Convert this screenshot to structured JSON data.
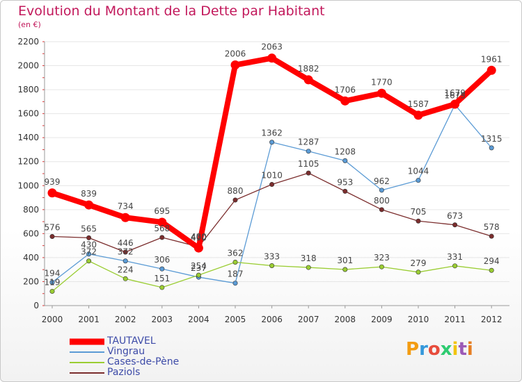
{
  "chart_data": {
    "type": "line",
    "title": "Evolution du Montant de la Dette par Habitant",
    "subtitle": "(en €)",
    "x": [
      "2000",
      "2001",
      "2002",
      "2003",
      "2004",
      "2005",
      "2006",
      "2007",
      "2008",
      "2009",
      "2010",
      "2011",
      "2012"
    ],
    "ylim": [
      0,
      2200
    ],
    "yticks": [
      0,
      200,
      400,
      600,
      800,
      1000,
      1200,
      1400,
      1600,
      1800,
      2000,
      2200
    ],
    "grid": "horizontal",
    "legend_position": "bottom-left",
    "series": [
      {
        "name": "TAUTAVEL",
        "color": "#ff0000",
        "values": [
          939,
          839,
          734,
          695,
          480,
          2006,
          2063,
          1882,
          1706,
          1770,
          1587,
          1679,
          1961
        ]
      },
      {
        "name": "Vingrau",
        "color": "#5b9bd5",
        "values": [
          194,
          430,
          372,
          306,
          237,
          187,
          1362,
          1287,
          1208,
          962,
          1044,
          1675,
          1315
        ]
      },
      {
        "name": "Cases-de-Pène",
        "color": "#9acd32",
        "values": [
          119,
          372,
          224,
          151,
          254,
          362,
          333,
          318,
          301,
          323,
          279,
          331,
          294
        ]
      },
      {
        "name": "Paziols",
        "color": "#7b2d2d",
        "values": [
          576,
          565,
          446,
          568,
          490,
          880,
          1010,
          1105,
          953,
          800,
          705,
          673,
          578
        ]
      }
    ]
  },
  "logo": {
    "text": "Proxiti",
    "colors": [
      "#f39c12",
      "#3498db",
      "#e74c3c",
      "#2ecc71",
      "#f1c40f",
      "#9b59b6",
      "#e67e22"
    ]
  }
}
